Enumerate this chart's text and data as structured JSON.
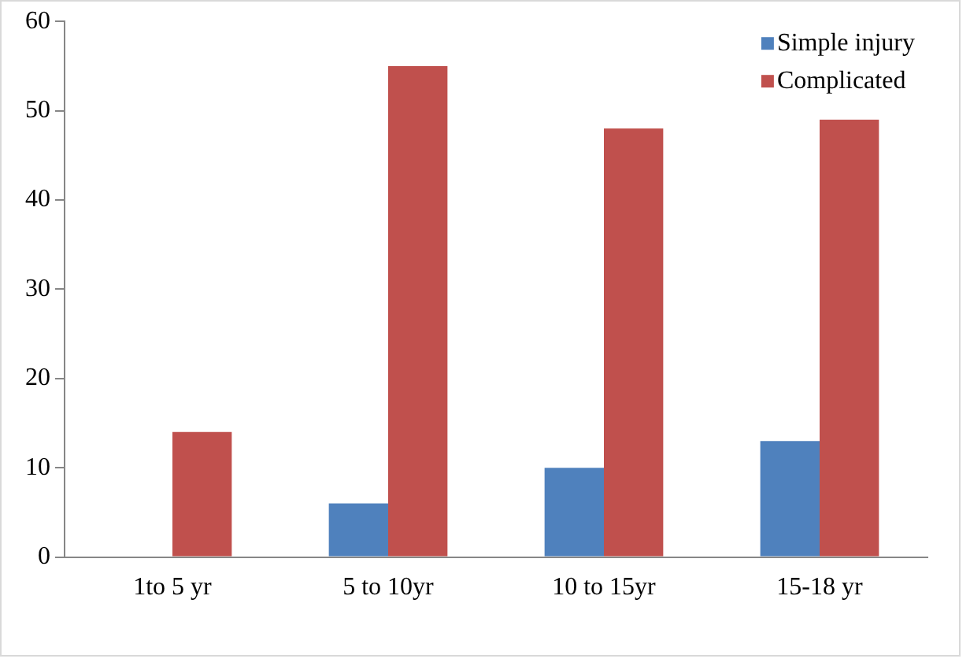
{
  "chart_data": {
    "type": "bar",
    "categories": [
      "1to 5 yr",
      "5 to 10yr",
      "10 to 15yr",
      "15-18 yr"
    ],
    "series": [
      {
        "name": "Simple injury",
        "color": "#4f81bd",
        "values": [
          0,
          6,
          10,
          13
        ]
      },
      {
        "name": "Complicated",
        "color": "#c0504d",
        "values": [
          14,
          55,
          48,
          49
        ]
      }
    ],
    "ylim": [
      0,
      60
    ],
    "yticks": [
      0,
      10,
      20,
      30,
      40,
      50,
      60
    ],
    "grid": false,
    "legend": "top right"
  }
}
